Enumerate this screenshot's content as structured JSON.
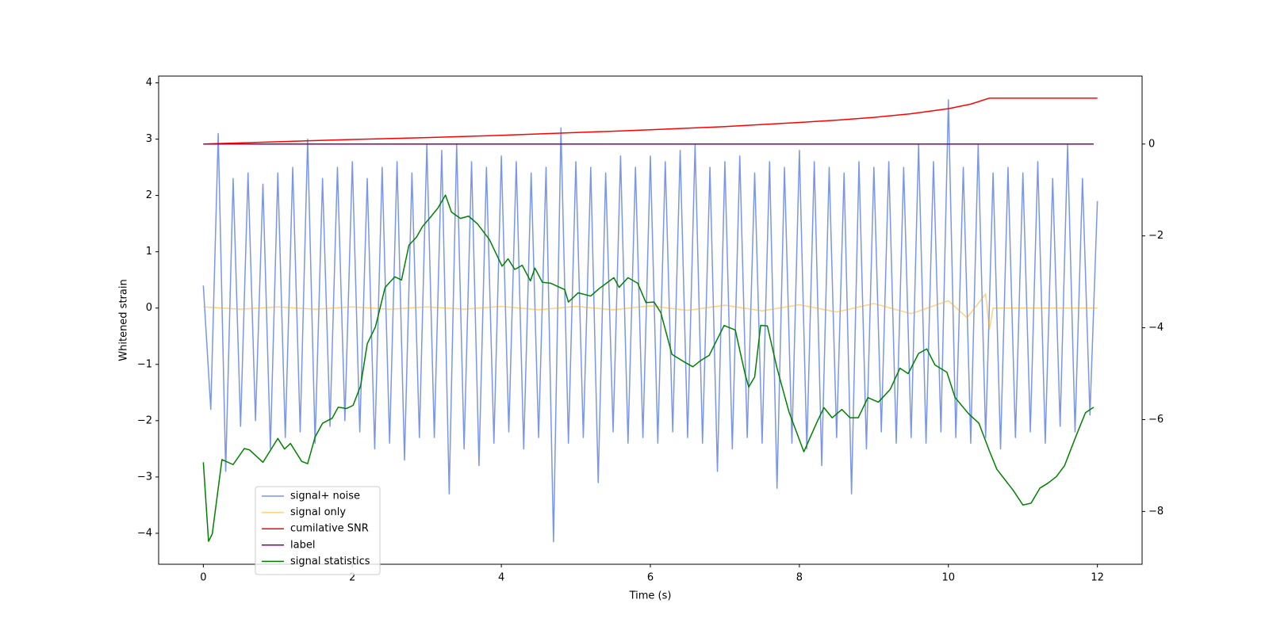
{
  "chart_data": {
    "type": "line",
    "xlabel": "Time (s)",
    "ylabel": "Whitened strain",
    "xlim": [
      -0.6,
      12.6
    ],
    "ylim": [
      -4.55,
      4.12
    ],
    "y2lim": [
      -9.15,
      1.48
    ],
    "xticks": [
      0,
      2,
      4,
      6,
      8,
      10,
      12
    ],
    "yticks": [
      {
        "value": -4,
        "label": "−4"
      },
      {
        "value": -3,
        "label": "−3"
      },
      {
        "value": -2,
        "label": "−2"
      },
      {
        "value": -1,
        "label": "−1"
      },
      0,
      1,
      2,
      3,
      4
    ],
    "y2ticks": [
      {
        "value": -8,
        "label": "−8"
      },
      {
        "value": -6,
        "label": "−6"
      },
      {
        "value": -4,
        "label": "−4"
      },
      {
        "value": -2,
        "label": "−2"
      },
      0
    ],
    "legend": "lower left",
    "series": [
      {
        "name": "signal+ noise",
        "color": "#4169e1",
        "alpha": 0.7,
        "x": [
          0,
          0.1,
          0.2,
          0.3,
          0.4,
          0.5,
          0.6,
          0.7,
          0.8,
          0.9,
          1,
          1.1,
          1.2,
          1.3,
          1.4,
          1.5,
          1.6,
          1.7,
          1.8,
          1.9,
          2,
          2.1,
          2.2,
          2.3,
          2.4,
          2.5,
          2.6,
          2.7,
          2.8,
          2.9,
          3,
          3.1,
          3.2,
          3.3,
          3.4,
          3.5,
          3.6,
          3.7,
          3.8,
          3.9,
          4,
          4.1,
          4.2,
          4.3,
          4.4,
          4.5,
          4.6,
          4.7,
          4.8,
          4.9,
          5,
          5.1,
          5.2,
          5.3,
          5.4,
          5.5,
          5.6,
          5.7,
          5.8,
          5.9,
          6,
          6.1,
          6.2,
          6.3,
          6.4,
          6.5,
          6.6,
          6.7,
          6.8,
          6.9,
          7,
          7.1,
          7.2,
          7.3,
          7.4,
          7.5,
          7.6,
          7.7,
          7.8,
          7.9,
          8,
          8.1,
          8.2,
          8.3,
          8.4,
          8.5,
          8.6,
          8.7,
          8.8,
          8.9,
          9,
          9.1,
          9.2,
          9.3,
          9.4,
          9.5,
          9.6,
          9.7,
          9.8,
          9.9,
          10,
          10.1,
          10.2,
          10.3,
          10.4,
          10.5,
          10.6,
          10.7,
          10.8,
          10.9,
          11,
          11.1,
          11.2,
          11.3,
          11.4,
          11.5,
          11.6,
          11.7,
          11.8,
          11.9,
          12
        ],
        "values": [
          0.4,
          -1.8,
          3.1,
          -2.9,
          2.3,
          -2.1,
          2.4,
          -2.0,
          2.2,
          -2.5,
          2.4,
          -2.3,
          2.5,
          -2.2,
          3.0,
          -2.4,
          2.3,
          -2.1,
          2.5,
          -2.0,
          2.6,
          -2.2,
          2.3,
          -2.5,
          2.5,
          -2.4,
          2.6,
          -2.7,
          2.4,
          -2.3,
          2.9,
          -2.3,
          2.8,
          -3.3,
          2.9,
          -2.5,
          2.6,
          -2.8,
          2.5,
          -2.4,
          2.7,
          -2.2,
          2.6,
          -2.5,
          2.4,
          -2.3,
          2.5,
          -4.15,
          3.2,
          -2.4,
          2.6,
          -2.3,
          2.5,
          -3.1,
          2.4,
          -2.2,
          2.7,
          -2.4,
          2.5,
          -2.3,
          2.7,
          -2.4,
          2.6,
          -2.2,
          2.8,
          -2.3,
          2.9,
          -2.4,
          2.5,
          -2.9,
          2.6,
          -2.5,
          2.7,
          -2.3,
          2.4,
          -2.4,
          2.6,
          -3.2,
          2.5,
          -2.4,
          2.8,
          -2.5,
          2.6,
          -2.8,
          2.5,
          -2.3,
          2.4,
          -3.3,
          2.6,
          -2.5,
          2.5,
          -2.2,
          2.6,
          -2.4,
          2.5,
          -2.3,
          2.9,
          -2.4,
          2.6,
          -2.2,
          3.7,
          -2.3,
          2.5,
          -2.4,
          2.9,
          -2.3,
          2.4,
          -2.5,
          2.5,
          -2.3,
          2.4,
          -2.2,
          2.6,
          -2.4,
          2.3,
          -2.1,
          2.9,
          -2.2,
          2.3,
          -1.9,
          1.9
        ]
      },
      {
        "name": "signal only",
        "color": "#ffa500",
        "alpha": 0.5,
        "x": [
          0,
          0.5,
          1,
          1.5,
          2,
          2.5,
          3,
          3.5,
          4,
          4.5,
          5,
          5.5,
          6,
          6.5,
          7,
          7.5,
          8,
          8.5,
          9,
          9.5,
          10,
          10.25,
          10.5,
          10.55,
          10.6,
          12
        ],
        "values": [
          0.02,
          -0.02,
          0.02,
          -0.02,
          0.02,
          -0.02,
          0.02,
          -0.02,
          0.03,
          -0.03,
          0.03,
          -0.03,
          0.04,
          -0.04,
          0.05,
          -0.05,
          0.06,
          -0.07,
          0.08,
          -0.1,
          0.13,
          -0.17,
          0.25,
          -0.38,
          0,
          0
        ]
      },
      {
        "name": "cumilative SNR",
        "color": "#ff0000",
        "axis": "y2",
        "x": [
          0,
          1,
          2,
          3,
          4,
          5,
          6,
          7,
          8,
          8.5,
          9,
          9.5,
          10,
          10.3,
          10.55,
          12
        ],
        "values": [
          0,
          0.05,
          0.1,
          0.14,
          0.19,
          0.25,
          0.31,
          0.38,
          0.47,
          0.52,
          0.58,
          0.66,
          0.77,
          0.87,
          1.0,
          1.0
        ]
      },
      {
        "name": "label",
        "color": "#800080",
        "axis": "y2",
        "x": [
          0,
          11.95
        ],
        "values": [
          0,
          0
        ]
      },
      {
        "name": "signal statistics",
        "color": "#008000",
        "axis": "y2",
        "x": [
          0,
          0.07,
          0.12,
          0.25,
          0.4,
          0.55,
          0.62,
          0.8,
          1.0,
          1.09,
          1.17,
          1.32,
          1.4,
          1.5,
          1.6,
          1.73,
          1.81,
          1.92,
          2.01,
          2.11,
          2.2,
          2.31,
          2.44,
          2.57,
          2.66,
          2.76,
          2.86,
          2.94,
          3.05,
          3.15,
          3.25,
          3.33,
          3.45,
          3.56,
          3.68,
          3.84,
          4.01,
          4.09,
          4.18,
          4.28,
          4.39,
          4.45,
          4.55,
          4.66,
          4.85,
          4.9,
          5.03,
          5.2,
          5.31,
          5.51,
          5.58,
          5.7,
          5.83,
          5.94,
          6.05,
          6.14,
          6.29,
          6.45,
          6.57,
          6.67,
          6.79,
          6.99,
          7.14,
          7.27,
          7.32,
          7.4,
          7.48,
          7.57,
          7.7,
          7.86,
          8.06,
          8.24,
          8.33,
          8.44,
          8.57,
          8.68,
          8.79,
          8.92,
          9.06,
          9.22,
          9.35,
          9.46,
          9.6,
          9.71,
          9.82,
          9.98,
          10.09,
          10.27,
          10.41,
          10.55,
          10.65,
          10.87,
          11.0,
          11.11,
          11.23,
          11.34,
          11.45,
          11.56,
          11.72,
          11.84,
          11.95
        ],
        "values": [
          -6.93,
          -8.65,
          -8.49,
          -6.87,
          -6.98,
          -6.63,
          -6.66,
          -6.93,
          -6.41,
          -6.64,
          -6.52,
          -6.91,
          -6.96,
          -6.38,
          -6.08,
          -5.97,
          -5.73,
          -5.76,
          -5.69,
          -5.27,
          -4.35,
          -3.98,
          -3.12,
          -2.89,
          -2.96,
          -2.2,
          -2.03,
          -1.8,
          -1.59,
          -1.39,
          -1.11,
          -1.48,
          -1.62,
          -1.57,
          -1.74,
          -2.08,
          -2.66,
          -2.5,
          -2.73,
          -2.64,
          -2.98,
          -2.7,
          -3.01,
          -3.03,
          -3.17,
          -3.44,
          -3.24,
          -3.31,
          -3.15,
          -2.91,
          -3.12,
          -2.91,
          -3.03,
          -3.45,
          -3.44,
          -3.67,
          -4.58,
          -4.74,
          -4.85,
          -4.72,
          -4.6,
          -3.95,
          -4.05,
          -5.0,
          -5.29,
          -5.07,
          -3.95,
          -3.96,
          -4.88,
          -5.83,
          -6.7,
          -6.04,
          -5.74,
          -5.96,
          -5.78,
          -5.96,
          -5.96,
          -5.52,
          -5.62,
          -5.34,
          -4.88,
          -5.0,
          -4.56,
          -4.46,
          -4.81,
          -4.97,
          -5.52,
          -5.87,
          -6.08,
          -6.68,
          -7.08,
          -7.54,
          -7.86,
          -7.82,
          -7.49,
          -7.38,
          -7.24,
          -7.0,
          -6.33,
          -5.85,
          -5.73
        ]
      }
    ]
  }
}
